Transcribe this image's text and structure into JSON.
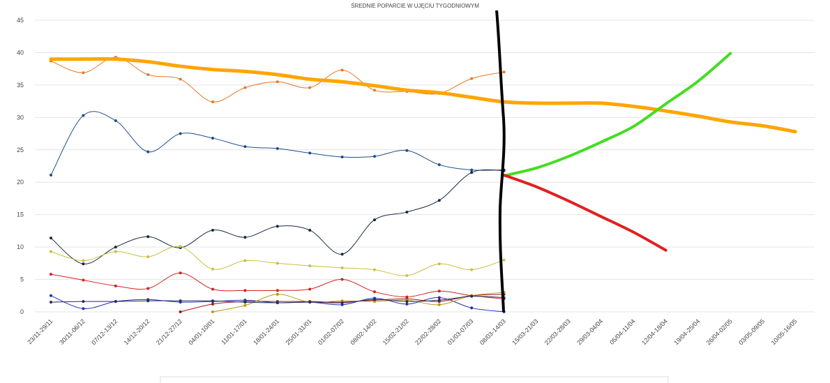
{
  "chart_data": {
    "type": "line",
    "title": "ŚREDNIE POPARCIE W UJĘCIU TYGODNIOWYM",
    "categories": [
      "23/11-29/11",
      "30/11-06/12",
      "07/12-13/12",
      "14/12-20/12",
      "21/12-27/12",
      "04/01-10/01",
      "11/01-17/01",
      "18/01-24/01",
      "25/01-31/01",
      "01/02-07/02",
      "08/02-14/02",
      "15/02-21/02",
      "22/02-28/02",
      "01/03-07/03",
      "08/03-14/03",
      "15/03-21/03",
      "22/03-28/03",
      "29/03-04/04",
      "05/04-11/04",
      "12/04-18/04",
      "19/04-25/04",
      "26/04-02/05",
      "03/05-09/05",
      "10/05-16/05"
    ],
    "ylim": [
      0,
      45
    ],
    "yticks": [
      0,
      5,
      10,
      15,
      20,
      25,
      30,
      35,
      40,
      45
    ],
    "grid": true,
    "series": [
      {
        "color": "#e87722",
        "width": 1,
        "markers": true,
        "values": [
          38.7,
          36.9,
          39.3,
          36.6,
          35.9,
          32.4,
          34.6,
          35.5,
          34.6,
          37.3,
          34.2,
          34.0,
          33.7,
          36.0,
          37.0,
          null,
          null,
          null,
          null,
          null,
          null,
          null,
          null,
          null
        ]
      },
      {
        "color": "#1f4e8c",
        "width": 1,
        "markers": true,
        "values": [
          21.1,
          30.3,
          29.5,
          24.7,
          27.5,
          26.8,
          25.5,
          25.2,
          24.5,
          23.9,
          24.0,
          24.9,
          22.7,
          21.9,
          21.9,
          null,
          null,
          null,
          null,
          null,
          null,
          null,
          null,
          null
        ]
      },
      {
        "color": "#1a2a40",
        "width": 1,
        "markers": true,
        "values": [
          11.4,
          7.4,
          10.0,
          11.6,
          9.9,
          12.6,
          11.5,
          13.2,
          12.6,
          8.9,
          14.2,
          15.4,
          17.2,
          21.5,
          21.8,
          null,
          null,
          null,
          null,
          null,
          null,
          null,
          null,
          null
        ]
      },
      {
        "color": "#c8c040",
        "width": 1,
        "markers": true,
        "values": [
          9.3,
          7.9,
          9.3,
          8.5,
          10.1,
          6.6,
          7.9,
          7.5,
          7.1,
          6.8,
          6.5,
          5.6,
          7.4,
          6.5,
          8.0,
          null,
          null,
          null,
          null,
          null,
          null,
          null,
          null,
          null
        ]
      },
      {
        "color": "#d42020",
        "width": 1,
        "markers": true,
        "values": [
          5.8,
          4.9,
          4.0,
          3.6,
          6.0,
          3.5,
          3.3,
          3.3,
          3.5,
          5.0,
          3.1,
          2.3,
          3.2,
          2.5,
          2.0,
          null,
          null,
          null,
          null,
          null,
          null,
          null,
          null,
          null
        ]
      },
      {
        "color": "#2030b0",
        "width": 1,
        "markers": true,
        "values": [
          2.5,
          0.5,
          1.6,
          1.9,
          1.5,
          1.6,
          1.8,
          1.4,
          1.5,
          1.1,
          2.1,
          1.2,
          2.2,
          0.6,
          0.0,
          null,
          null,
          null,
          null,
          null,
          null,
          null,
          null,
          null
        ]
      },
      {
        "color": "#a01818",
        "width": 1,
        "markers": true,
        "values": [
          null,
          null,
          null,
          null,
          0.0,
          1.2,
          1.6,
          1.6,
          1.6,
          1.5,
          1.8,
          2.0,
          1.6,
          2.5,
          2.7,
          null,
          null,
          null,
          null,
          null,
          null,
          null,
          null,
          null
        ]
      },
      {
        "color": "#b89a10",
        "width": 1,
        "markers": true,
        "values": [
          null,
          null,
          null,
          null,
          null,
          0.0,
          1.0,
          2.7,
          1.5,
          1.7,
          1.6,
          1.8,
          1.1,
          2.5,
          3.0,
          null,
          null,
          null,
          null,
          null,
          null,
          null,
          null,
          null
        ]
      },
      {
        "color": "#2a2a60",
        "width": 1,
        "markers": true,
        "values": [
          1.5,
          1.6,
          1.6,
          1.7,
          1.7,
          1.7,
          1.5,
          1.4,
          1.5,
          1.4,
          1.9,
          1.6,
          1.8,
          2.4,
          2.2,
          null,
          null,
          null,
          null,
          null,
          null,
          null,
          null,
          null
        ]
      },
      {
        "color": "#ffa500",
        "width": 5,
        "markers": false,
        "values": [
          39.0,
          39.0,
          39.0,
          38.6,
          37.9,
          37.4,
          37.1,
          36.6,
          35.9,
          35.5,
          34.9,
          34.2,
          33.8,
          33.1,
          32.4,
          32.2,
          32.2,
          32.2,
          31.7,
          31.0,
          30.2,
          29.3,
          28.7,
          27.8
        ]
      },
      {
        "color": "#44dd22",
        "width": 4,
        "markers": false,
        "values": [
          null,
          null,
          null,
          null,
          null,
          null,
          null,
          null,
          null,
          null,
          null,
          null,
          null,
          null,
          21.0,
          22.2,
          24.0,
          26.2,
          28.6,
          32.1,
          35.6,
          39.9,
          null,
          null
        ]
      },
      {
        "color": "#e02020",
        "width": 4,
        "markers": false,
        "values": [
          null,
          null,
          null,
          null,
          null,
          null,
          null,
          null,
          null,
          null,
          null,
          null,
          null,
          null,
          21.1,
          19.3,
          17.1,
          14.7,
          12.3,
          9.5,
          null,
          null,
          null,
          null
        ]
      }
    ]
  }
}
